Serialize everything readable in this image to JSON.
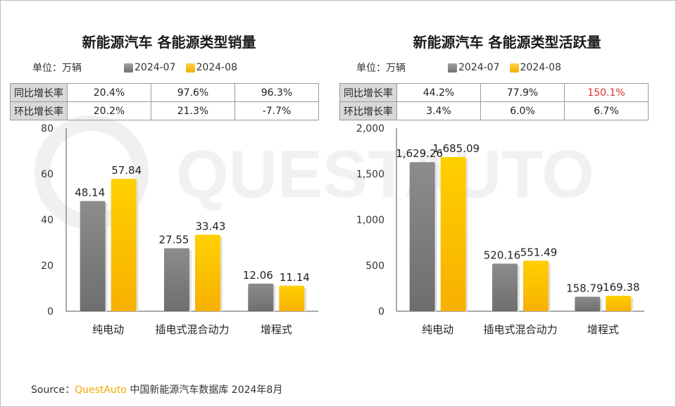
{
  "watermark_text": "QUESTAUTO",
  "legend": [
    {
      "label": "2024-07",
      "color": "#808080"
    },
    {
      "label": "2024-08",
      "color": "#ffc000"
    }
  ],
  "left": {
    "title": "新能源汽车 各能源类型销量",
    "unit": "单位：万辆",
    "table": [
      {
        "label": "同比增长率",
        "cells": [
          "20.4%",
          "97.6%",
          "96.3%"
        ]
      },
      {
        "label": "环比增长率",
        "cells": [
          "20.2%",
          "21.3%",
          "-7.7%"
        ]
      }
    ]
  },
  "right": {
    "title": "新能源汽车 各能源类型活跃量",
    "unit": "单位：万辆",
    "table": [
      {
        "label": "同比增长率",
        "cells": [
          "44.2%",
          "77.9%",
          "150.1%"
        ]
      },
      {
        "label": "环比增长率",
        "cells": [
          "3.4%",
          "6.0%",
          "6.7%"
        ]
      }
    ],
    "highlight_color": "#e03030"
  },
  "source": {
    "prefix": "Source：",
    "brand": "QuestAuto",
    "rest": " 中国新能源汽车数据库 2024年8月"
  },
  "chart_data": [
    {
      "type": "bar",
      "title": "新能源汽车 各能源类型销量",
      "ylabel": "单位：万辆",
      "categories": [
        "纯电动",
        "插电式混合动力",
        "增程式"
      ],
      "series": [
        {
          "name": "2024-07",
          "values": [
            48.14,
            27.55,
            12.06
          ],
          "labels": [
            "48.14",
            "27.55",
            "12.06"
          ]
        },
        {
          "name": "2024-08",
          "values": [
            57.84,
            33.43,
            11.14
          ],
          "labels": [
            "57.84",
            "33.43",
            "11.14"
          ]
        }
      ],
      "ylim": [
        0,
        80
      ],
      "yticks": [
        0,
        20,
        40,
        60,
        80
      ],
      "ytick_labels": [
        "0",
        "20",
        "40",
        "60",
        "80"
      ],
      "grid": false,
      "legend": "top"
    },
    {
      "type": "bar",
      "title": "新能源汽车 各能源类型活跃量",
      "ylabel": "单位：万辆",
      "categories": [
        "纯电动",
        "插电式混合动力",
        "增程式"
      ],
      "series": [
        {
          "name": "2024-07",
          "values": [
            1629.26,
            520.16,
            158.79
          ],
          "labels": [
            "1,629.26",
            "520.16",
            "158.79"
          ]
        },
        {
          "name": "2024-08",
          "values": [
            1685.09,
            551.49,
            169.38
          ],
          "labels": [
            "1,685.09",
            "551.49",
            "169.38"
          ]
        }
      ],
      "ylim": [
        0,
        2000
      ],
      "yticks": [
        0,
        500,
        1000,
        1500,
        2000
      ],
      "ytick_labels": [
        "0",
        "500",
        "1,000",
        "1,500",
        "2,000"
      ],
      "grid": false,
      "legend": "top"
    }
  ]
}
